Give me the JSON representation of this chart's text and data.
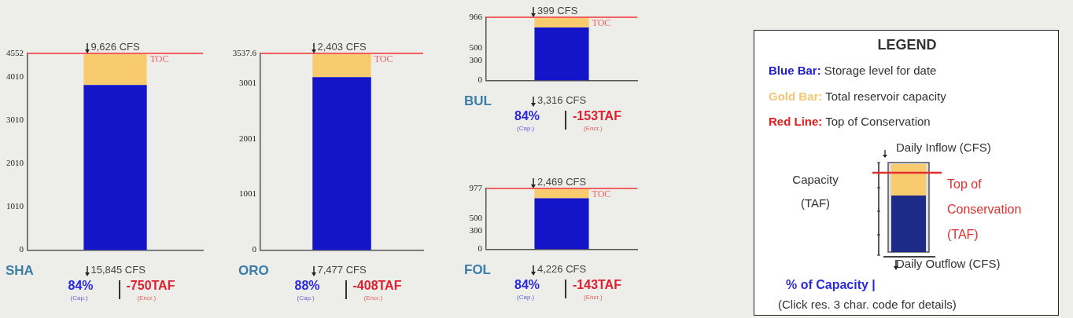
{
  "chart_data": [
    {
      "type": "bar",
      "xlabel": "SHA",
      "categories": [
        null
      ],
      "stacked": true,
      "grid": false,
      "legend": false,
      "series": [
        {
          "color": "#1414c8",
          "values": [
            3820
          ]
        },
        {
          "color": "#f8cc6e",
          "values": [
            730
          ]
        }
      ],
      "ylim": [
        0,
        4552
      ],
      "yticks": [
        0,
        1010,
        2010,
        3010,
        4010,
        4552
      ],
      "ref_lines": [
        {
          "axis": "y",
          "value": 4552,
          "label": "TOC",
          "color": "#f06060"
        }
      ],
      "annotations": [
        "9,626 CFS",
        "15,845 CFS",
        "84%",
        "(Cap.)",
        "-750TAF",
        "(Encr.)"
      ]
    },
    {
      "type": "bar",
      "xlabel": "ORO",
      "categories": [
        null
      ],
      "stacked": true,
      "grid": false,
      "legend": false,
      "series": [
        {
          "color": "#1414c8",
          "values": [
            3110
          ]
        },
        {
          "color": "#f8cc6e",
          "values": [
            420
          ]
        }
      ],
      "ylim": [
        0,
        3537.6
      ],
      "yticks": [
        0,
        1001,
        2001,
        3001,
        3537.6
      ],
      "ref_lines": [
        {
          "axis": "y",
          "value": 3537.6,
          "label": "TOC",
          "color": "#f06060"
        }
      ],
      "annotations": [
        "2,403 CFS",
        "7,477 CFS",
        "88%",
        "(Cap.)",
        "-408TAF",
        "(Encr.)"
      ]
    },
    {
      "type": "bar",
      "xlabel": "BUL",
      "categories": [
        null
      ],
      "stacked": true,
      "grid": false,
      "legend": false,
      "series": [
        {
          "color": "#1414c8",
          "values": [
            810
          ]
        },
        {
          "color": "#f8cc6e",
          "values": [
            150
          ]
        }
      ],
      "ylim": [
        0,
        966
      ],
      "yticks": [
        0,
        300,
        500,
        966
      ],
      "ref_lines": [
        {
          "axis": "y",
          "value": 966,
          "label": "TOC",
          "color": "#f06060"
        }
      ],
      "annotations": [
        "399 CFS",
        "3,316 CFS",
        "84%",
        "(Cap.)",
        "-153TAF",
        "(Encr.)"
      ]
    },
    {
      "type": "bar",
      "xlabel": "FOL",
      "categories": [
        null
      ],
      "stacked": true,
      "grid": false,
      "legend": false,
      "series": [
        {
          "color": "#1414c8",
          "values": [
            820
          ]
        },
        {
          "color": "#f8cc6e",
          "values": [
            150
          ]
        }
      ],
      "ylim": [
        0,
        977
      ],
      "yticks": [
        0,
        300,
        500,
        977
      ],
      "ref_lines": [
        {
          "axis": "y",
          "value": 977,
          "label": "TOC",
          "color": "#f06060"
        }
      ],
      "annotations": [
        "2,469 CFS",
        "4,226 CFS",
        "84%",
        "(Cap.)",
        "-143TAF",
        "(Encr.)"
      ]
    },
    {
      "type": "other",
      "title": "LEGEND",
      "annotations": [
        "Blue Bar: Storage level for date",
        "Gold Bar: Total reservoir capacity",
        "Red Line: Top of Conservation",
        "Daily Inflow (CFS)",
        "Capacity (TAF)",
        "Top of Conservation (TAF)",
        "Daily Outflow (CFS)",
        "% of Capacity |",
        "(Click res. 3 char. code for details)"
      ]
    }
  ]
}
